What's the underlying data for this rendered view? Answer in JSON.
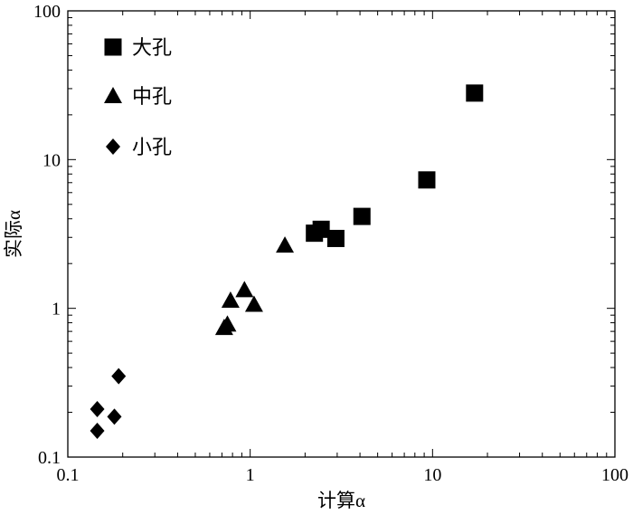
{
  "chart_data": {
    "type": "scatter",
    "title": "",
    "xlabel": "计算α",
    "ylabel": "实际α",
    "xscale": "log",
    "yscale": "log",
    "xlim": [
      0.1,
      100
    ],
    "ylim": [
      0.1,
      100
    ],
    "grid": false,
    "legend_position": "top-left",
    "x_ticks": [
      "0.1",
      "1",
      "10",
      "100"
    ],
    "y_ticks": [
      "0.1",
      "1",
      "10",
      "100"
    ],
    "series": [
      {
        "name": "大孔",
        "marker": "square",
        "color": "#000000",
        "points": [
          {
            "x": 2.25,
            "y": 3.2
          },
          {
            "x": 2.45,
            "y": 3.4
          },
          {
            "x": 2.95,
            "y": 2.95
          },
          {
            "x": 4.1,
            "y": 4.15
          },
          {
            "x": 9.3,
            "y": 7.3
          },
          {
            "x": 17.0,
            "y": 28.0
          }
        ]
      },
      {
        "name": "中孔",
        "marker": "triangle",
        "color": "#000000",
        "points": [
          {
            "x": 0.72,
            "y": 0.74
          },
          {
            "x": 0.75,
            "y": 0.78
          },
          {
            "x": 0.78,
            "y": 1.13
          },
          {
            "x": 0.93,
            "y": 1.33
          },
          {
            "x": 1.05,
            "y": 1.06
          },
          {
            "x": 1.55,
            "y": 2.65
          }
        ]
      },
      {
        "name": "小孔",
        "marker": "diamond",
        "color": "#000000",
        "points": [
          {
            "x": 0.145,
            "y": 0.21
          },
          {
            "x": 0.145,
            "y": 0.15
          },
          {
            "x": 0.18,
            "y": 0.187
          },
          {
            "x": 0.19,
            "y": 0.35
          }
        ]
      }
    ]
  }
}
